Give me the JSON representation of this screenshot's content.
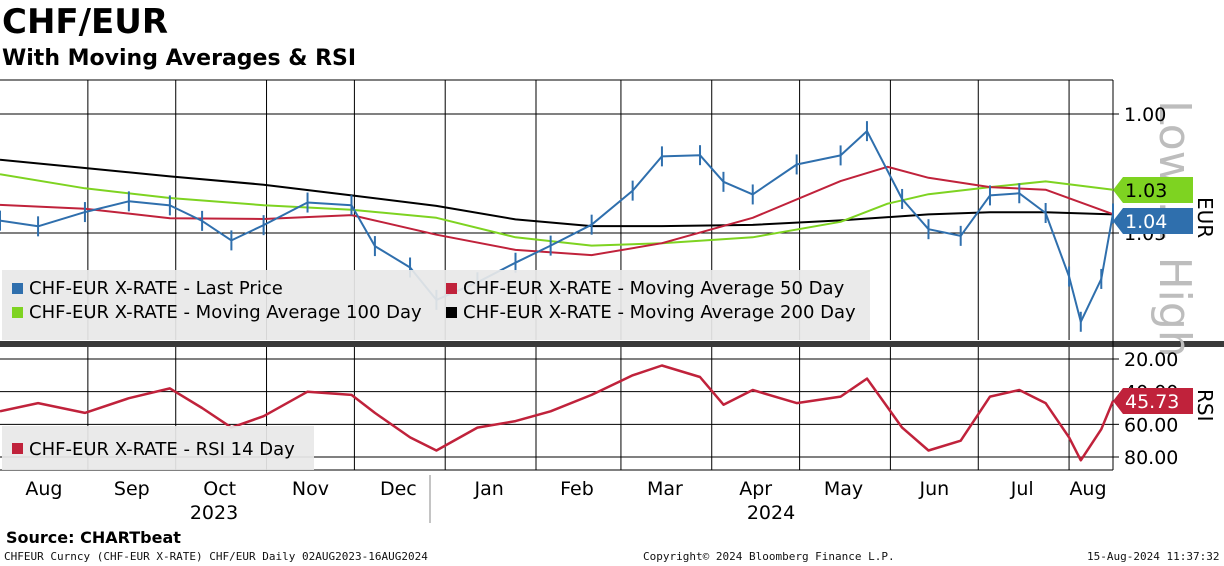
{
  "header": {
    "title": "CHF/EUR",
    "subtitle": "With Moving Averages & RSI"
  },
  "footer": {
    "source": "Source: CHARTbeat",
    "security": "CHFEUR Curncy (CHF-EUR X-RATE) CHF/EUR  Daily 02AUG2023-16AUG2024",
    "copyright": "Copyright© 2024 Bloomberg Finance L.P.",
    "timestamp": "15-Aug-2024 11:37:32"
  },
  "watermark": "Low ... High",
  "colors": {
    "price": "#2f6fad",
    "ma50": "#c0223b",
    "ma100": "#7ed321",
    "ma200": "#000000",
    "rsi": "#c0223b"
  },
  "chart_data": [
    {
      "type": "line",
      "panel": "price",
      "axis_label": "EUR",
      "axis_inverted": true,
      "yticks": [
        "1.00",
        "1.05"
      ],
      "y_tick_values": [
        1.0,
        1.05
      ],
      "badges": [
        {
          "label": "1.03",
          "value": 1.03,
          "color": "#7ed321"
        },
        {
          "label": "1.04",
          "value": 1.04,
          "color": "#2f6fad"
        }
      ],
      "x_months": [
        "Aug",
        "Sep",
        "Oct",
        "Nov",
        "Dec",
        "Jan",
        "Feb",
        "Mar",
        "Apr",
        "May",
        "Jun",
        "Jul",
        "Aug"
      ],
      "x_years": [
        "2023",
        "2024"
      ],
      "legend": [
        {
          "label": "CHF-EUR X-RATE - Last Price",
          "color": "#2f6fad"
        },
        {
          "label": "CHF-EUR X-RATE - Moving Average 50 Day",
          "color": "#c0223b"
        },
        {
          "label": "CHF-EUR X-RATE - Moving Average 100 Day",
          "color": "#7ed321"
        },
        {
          "label": "CHF-EUR X-RATE - Moving Average 200 Day",
          "color": "#000000"
        }
      ],
      "time_range": [
        "2023-08-02",
        "2024-08-16"
      ],
      "series": [
        {
          "name": "CHF-EUR X-RATE - Last Price",
          "x": [
            "2023-08-02",
            "2023-08-15",
            "2023-08-31",
            "2023-09-15",
            "2023-09-29",
            "2023-10-10",
            "2023-10-20",
            "2023-10-31",
            "2023-11-15",
            "2023-11-30",
            "2023-12-08",
            "2023-12-20",
            "2023-12-29",
            "2024-01-12",
            "2024-01-25",
            "2024-02-06",
            "2024-02-20",
            "2024-03-05",
            "2024-03-15",
            "2024-03-28",
            "2024-04-05",
            "2024-04-15",
            "2024-04-30",
            "2024-05-15",
            "2024-05-24",
            "2024-06-05",
            "2024-06-14",
            "2024-06-25",
            "2024-07-05",
            "2024-07-15",
            "2024-07-24",
            "2024-08-01",
            "2024-08-05",
            "2024-08-12",
            "2024-08-16"
          ],
          "values": [
            1.0448,
            1.0472,
            1.0412,
            1.0367,
            1.0384,
            1.0449,
            1.0531,
            1.0467,
            1.0372,
            1.0383,
            1.0555,
            1.0645,
            1.0781,
            1.0707,
            1.0625,
            1.0553,
            1.0465,
            1.0322,
            1.0178,
            1.0173,
            1.0285,
            1.0338,
            1.0212,
            1.0174,
            1.0072,
            1.0357,
            1.0484,
            1.0512,
            1.0342,
            1.0333,
            1.0416,
            1.0683,
            1.0873,
            1.0693,
            1.0418
          ]
        },
        {
          "name": "CHF-EUR X-RATE - Moving Average 50 Day",
          "x": [
            "2023-08-02",
            "2023-08-31",
            "2023-09-29",
            "2023-10-31",
            "2023-11-30",
            "2023-12-29",
            "2024-01-25",
            "2024-02-20",
            "2024-03-15",
            "2024-04-15",
            "2024-05-15",
            "2024-05-31",
            "2024-06-14",
            "2024-07-05",
            "2024-07-24",
            "2024-08-16"
          ],
          "values": [
            1.0382,
            1.0398,
            1.0438,
            1.0441,
            1.0425,
            1.0507,
            1.0571,
            1.0593,
            1.0543,
            1.0436,
            1.0282,
            1.0222,
            1.0268,
            1.0307,
            1.0318,
            1.0421
          ]
        },
        {
          "name": "CHF-EUR X-RATE - Moving Average 100 Day",
          "x": [
            "2023-08-02",
            "2023-08-31",
            "2023-09-29",
            "2023-10-31",
            "2023-11-30",
            "2023-12-29",
            "2024-01-25",
            "2024-02-20",
            "2024-03-15",
            "2024-04-15",
            "2024-05-15",
            "2024-05-31",
            "2024-06-14",
            "2024-07-05",
            "2024-07-24",
            "2024-08-16"
          ],
          "values": [
            1.0253,
            1.0312,
            1.0353,
            1.0383,
            1.0402,
            1.0436,
            1.0518,
            1.0553,
            1.0543,
            1.0518,
            1.0453,
            1.0377,
            1.0337,
            1.0307,
            1.0283,
            1.0318
          ]
        },
        {
          "name": "CHF-EUR X-RATE - Moving Average 200 Day",
          "x": [
            "2023-08-02",
            "2023-08-31",
            "2023-09-29",
            "2023-10-31",
            "2023-11-30",
            "2023-12-29",
            "2024-01-25",
            "2024-02-20",
            "2024-03-15",
            "2024-04-15",
            "2024-05-15",
            "2024-06-14",
            "2024-07-05",
            "2024-07-24",
            "2024-08-16"
          ],
          "values": [
            1.0192,
            1.0227,
            1.0262,
            1.0297,
            1.0342,
            1.0386,
            1.0443,
            1.0471,
            1.0471,
            1.0466,
            1.0447,
            1.0422,
            1.0413,
            1.0413,
            1.0422
          ]
        }
      ]
    },
    {
      "type": "line",
      "panel": "rsi",
      "axis_label": "RSI",
      "axis_inverted": true,
      "yticks": [
        "20.00",
        "40.00",
        "60.00",
        "80.00"
      ],
      "y_tick_values": [
        20,
        40,
        60,
        80
      ],
      "badges": [
        {
          "label": "45.73",
          "value": 45.73,
          "color": "#c0223b"
        }
      ],
      "legend": [
        {
          "label": "CHF-EUR X-RATE - RSI 14 Day",
          "color": "#c0223b"
        }
      ],
      "series": [
        {
          "name": "CHF-EUR X-RATE - RSI 14 Day",
          "x": [
            "2023-08-02",
            "2023-08-15",
            "2023-08-31",
            "2023-09-15",
            "2023-09-29",
            "2023-10-10",
            "2023-10-20",
            "2023-10-31",
            "2023-11-15",
            "2023-11-30",
            "2023-12-08",
            "2023-12-20",
            "2023-12-29",
            "2024-01-12",
            "2024-01-25",
            "2024-02-06",
            "2024-02-20",
            "2024-03-05",
            "2024-03-15",
            "2024-03-28",
            "2024-04-05",
            "2024-04-15",
            "2024-04-30",
            "2024-05-15",
            "2024-05-24",
            "2024-06-05",
            "2024-06-14",
            "2024-06-25",
            "2024-07-05",
            "2024-07-15",
            "2024-07-24",
            "2024-08-01",
            "2024-08-05",
            "2024-08-12",
            "2024-08-16"
          ],
          "values": [
            52.0,
            47.0,
            53.0,
            44.0,
            38.0,
            50.0,
            62.0,
            55.0,
            40.0,
            42.0,
            53.0,
            68.0,
            76.0,
            62.0,
            58.0,
            52.0,
            42.0,
            30.0,
            24.0,
            31.0,
            48.0,
            39.0,
            47.0,
            43.0,
            32.0,
            62.0,
            76.0,
            70.0,
            43.0,
            39.0,
            47.0,
            68.0,
            82.0,
            63.0,
            45.73
          ]
        }
      ]
    }
  ]
}
